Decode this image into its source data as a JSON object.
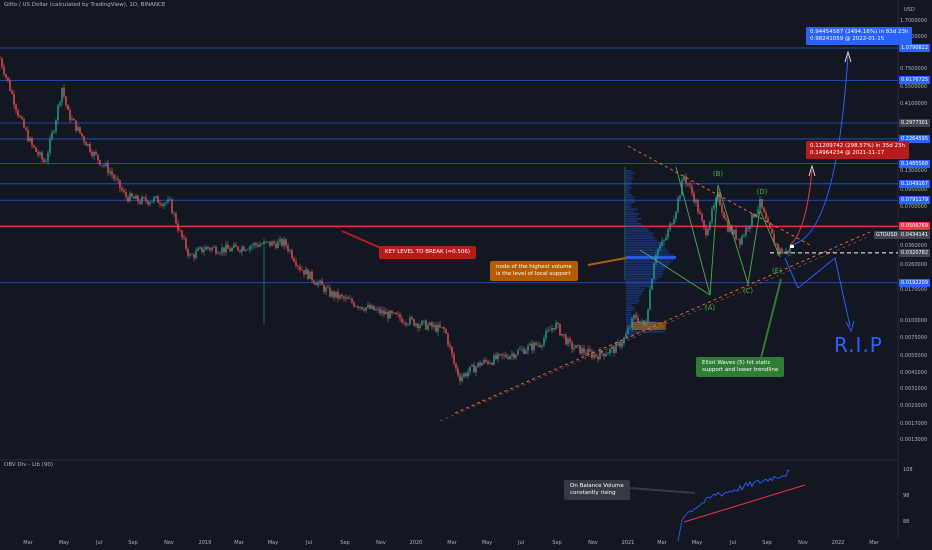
{
  "header": {
    "title": "Gifto / US Dollar (calculated by TradingView), 1D, BINANCE",
    "currency": "USD"
  },
  "colors": {
    "background": "#131722",
    "candle_up": "#26a69a",
    "candle_down": "#ef5350",
    "level_line": "#2962ff",
    "key_level": "#f23645",
    "trendline": "#ff7043",
    "wave_line": "#4caf50",
    "projection": "#2962ff",
    "obv_line": "#2962ff",
    "obv_trend": "#f23645"
  },
  "chart_data": {
    "type": "line",
    "scale": "log",
    "x": [
      "2018-03",
      "2018-05",
      "2018-07",
      "2018-09",
      "2018-11",
      "2019-01",
      "2019-03",
      "2019-05",
      "2019-07",
      "2019-09",
      "2019-11",
      "2020-01",
      "2020-03",
      "2020-05",
      "2020-07",
      "2020-09",
      "2020-11",
      "2021-01",
      "2021-03",
      "2021-05",
      "2021-07",
      "2021-09",
      "2021-10"
    ],
    "series": [
      {
        "values": [
          0.6,
          0.42,
          0.2,
          0.11,
          0.085,
          0.042,
          0.03,
          0.032,
          0.025,
          0.016,
          0.012,
          0.01,
          0.0042,
          0.0048,
          0.0062,
          0.0078,
          0.0065,
          0.012,
          0.04,
          0.11,
          0.07,
          0.045,
          0.032
        ]
      }
    ],
    "ylim": [
      0.00095,
      2.0
    ],
    "y_ticks": [
      "1.7000000",
      "1.3000000",
      "0.7500000",
      "0.5500000",
      "0.4100000",
      "0.1300000",
      "0.0950000",
      "0.0700000",
      "0.0360000",
      "0.0260000",
      "0.0170000",
      "0.0100000",
      "0.0075000",
      "0.0055000",
      "0.0041000",
      "0.0031000",
      "0.0023000",
      "0.0017000",
      "0.0013000"
    ],
    "levels": [
      {
        "label": "1.0790822",
        "value": 1.0790822
      },
      {
        "label": "0.6176725",
        "value": 0.6176725
      },
      {
        "label": "0.2977301",
        "value": 0.2977301
      },
      {
        "label": "0.2264595",
        "value": 0.2264595
      },
      {
        "label": "0.1485568",
        "value": 0.1485568
      },
      {
        "label": "0.1049167",
        "value": 0.1049167
      },
      {
        "label": "0.0791179",
        "value": 0.0791179
      },
      {
        "label": "0.0506769",
        "value": 0.0506769
      },
      {
        "label": "0.0434141",
        "value": 0.0434141
      },
      {
        "label": "0.0320782",
        "value": 0.0320782
      },
      {
        "label": "0.0192209",
        "value": 0.0192209
      }
    ],
    "symbol_tag": "GTOUSD",
    "x_ticks": [
      "Mar",
      "May",
      "Jul",
      "Sep",
      "Nov",
      "2019",
      "Mar",
      "May",
      "Jul",
      "Sep",
      "Nov",
      "2020",
      "Mar",
      "May",
      "Jul",
      "Sep",
      "Nov",
      "2021",
      "Mar",
      "May",
      "Jul",
      "Sep",
      "Nov",
      "2022",
      "Mar"
    ],
    "annotations": {
      "key_level": "KEY LEVEL TO BREAK (≈0.506)",
      "volume_node": [
        "node of the highest volume",
        "is the level of local support"
      ],
      "elliot": [
        "Elliot Waves (5) hit static",
        "support and lower trendline"
      ],
      "obv_note": [
        "On Balance Volume",
        "constantly rising"
      ],
      "target_high": [
        "0.94454587 (2494.16%) in 83d 23h",
        "0.98241059 @ 2022-01-15"
      ],
      "target_mid": [
        "0.11209742 (298.57%) in 35d 23h",
        "0.14964234 @ 2021-11-17"
      ],
      "rip": "R.I.P",
      "waves": [
        "(B)",
        "(D)",
        "(A)",
        "(C)",
        "(E)"
      ]
    }
  },
  "obv_panel": {
    "title": "OBV Div - Lib (90)",
    "y_ticks": [
      "108",
      "98",
      "88"
    ]
  }
}
